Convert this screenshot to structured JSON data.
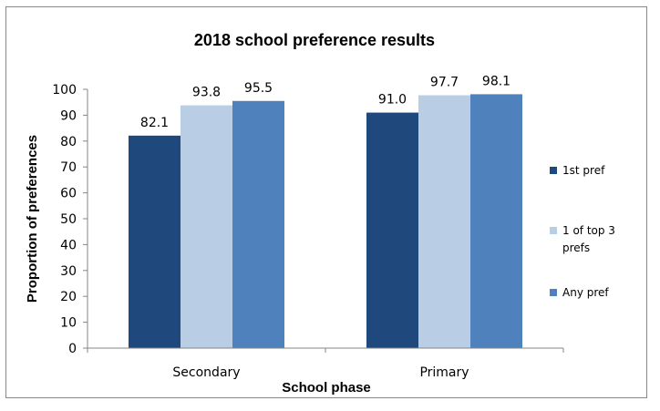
{
  "chart_data": {
    "type": "bar",
    "title": "2018 school preference results",
    "xlabel": "School phase",
    "ylabel": "Proportion of preferences",
    "categories": [
      "Secondary",
      "Primary"
    ],
    "series": [
      {
        "name": "1st pref",
        "values": [
          82.1,
          91.0
        ],
        "labels": [
          "82.1",
          "91.0"
        ],
        "color": "#1f497d"
      },
      {
        "name": "1 of top 3 prefs",
        "legend_lines": [
          "1 of top 3",
          "prefs"
        ],
        "values": [
          93.8,
          97.7
        ],
        "labels": [
          "93.8",
          "97.7"
        ],
        "color": "#b9cde5"
      },
      {
        "name": "Any pref",
        "values": [
          95.5,
          98.1
        ],
        "labels": [
          "95.5",
          "98.1"
        ],
        "color": "#4f81bd"
      }
    ],
    "ylim": [
      0,
      100
    ],
    "yticks": [
      "0",
      "10",
      "20",
      "30",
      "40",
      "50",
      "60",
      "70",
      "80",
      "90",
      "100"
    ],
    "grid": false,
    "legend": "right"
  }
}
